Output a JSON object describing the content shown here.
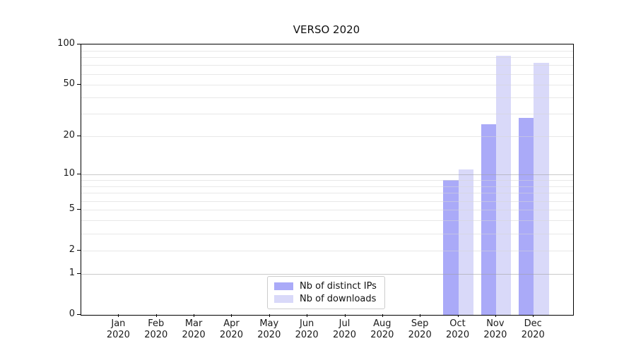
{
  "chart_data": {
    "type": "bar",
    "title": "VERSO 2020",
    "categories": [
      "Jan",
      "Feb",
      "Mar",
      "Apr",
      "May",
      "Jun",
      "Jul",
      "Aug",
      "Sep",
      "Oct",
      "Nov",
      "Dec"
    ],
    "category_year": "2020",
    "series": [
      {
        "name": "Nb of distinct IPs",
        "color": "#aaaaf8",
        "values": [
          0,
          0,
          0,
          0,
          0,
          0,
          0,
          0,
          0,
          9,
          25,
          28
        ]
      },
      {
        "name": "Nb of downloads",
        "color": "#d9d9f9",
        "values": [
          0,
          0,
          0,
          0,
          0,
          0,
          0,
          0,
          0,
          11,
          82,
          73
        ]
      }
    ],
    "y_axis": {
      "scale": "log10(value+1)",
      "min": 0,
      "max": 100,
      "tick_labels": [
        100,
        50,
        20,
        10,
        5,
        2,
        1,
        0
      ],
      "major_gridlines": [
        1,
        10
      ],
      "minor_gridlines": [
        2,
        3,
        4,
        5,
        6,
        7,
        8,
        9,
        20,
        30,
        40,
        50,
        60,
        70,
        80,
        90
      ]
    },
    "legend": {
      "position": "lower center"
    },
    "grid": true
  },
  "colors": {
    "background": "#ffffff",
    "spine": "#000000",
    "tick_label": "#1a1a1a",
    "bar_ips": "#aaaaf8",
    "bar_downloads": "#d9d9f9"
  }
}
